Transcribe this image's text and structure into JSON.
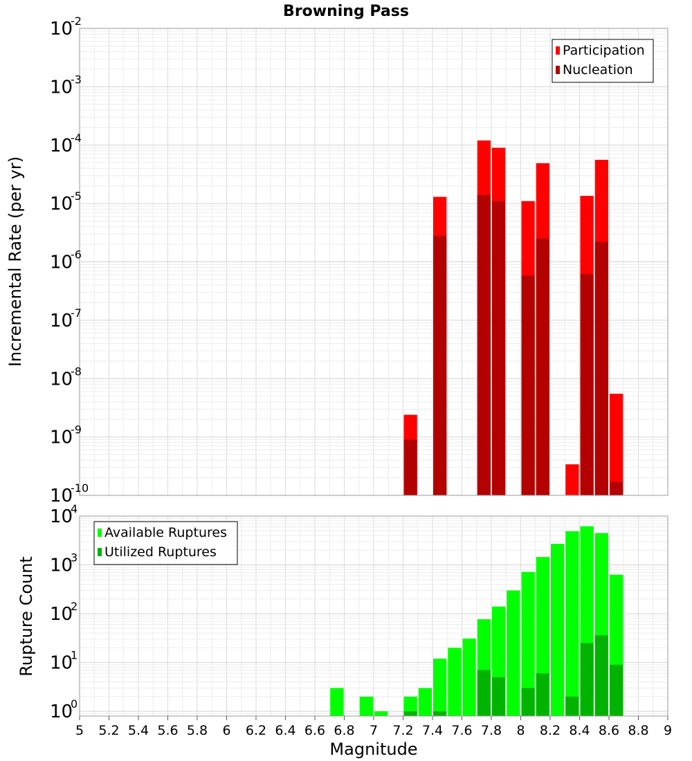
{
  "chart_data": [
    {
      "type": "bar",
      "title": "Browning Pass",
      "ylabel": "Incremental Rate (per yr)",
      "xlabel": "",
      "xlim": [
        5,
        9
      ],
      "ylim": [
        1e-10,
        0.01
      ],
      "yscale": "log",
      "grid": true,
      "legend_position": "top-right",
      "bin_width": 0.1,
      "series": [
        {
          "name": "Participation",
          "color": "#ff0000",
          "x": [
            7.25,
            7.45,
            7.75,
            7.85,
            8.05,
            8.15,
            8.35,
            8.45,
            8.55,
            8.65
          ],
          "values": [
            2.4e-09,
            1.3e-05,
            0.00012,
            9e-05,
            1.1e-05,
            4.9e-05,
            3.4e-10,
            1.35e-05,
            5.6e-05,
            5.5e-09
          ]
        },
        {
          "name": "Nucleation",
          "color": "#b30000",
          "x": [
            7.25,
            7.45,
            7.75,
            7.85,
            8.05,
            8.15,
            8.45,
            8.55,
            8.65
          ],
          "values": [
            9e-10,
            2.8e-06,
            1.4e-05,
            1.1e-05,
            5.8e-07,
            2.5e-06,
            6.2e-07,
            2.2e-06,
            1.7e-10
          ]
        }
      ]
    },
    {
      "type": "bar",
      "title": "",
      "ylabel": "Rupture Count",
      "xlabel": "Magnitude",
      "xlim": [
        5,
        9
      ],
      "ylim": [
        0.8,
        10000
      ],
      "yscale": "log",
      "grid": true,
      "legend_position": "top-left",
      "bin_width": 0.1,
      "x_ticks": [
        "5",
        "5.2",
        "5.4",
        "5.6",
        "5.8",
        "6",
        "6.2",
        "6.4",
        "6.6",
        "6.8",
        "7",
        "7.2",
        "7.4",
        "7.6",
        "7.8",
        "8",
        "8.2",
        "8.4",
        "8.6",
        "8.8",
        "9"
      ],
      "series": [
        {
          "name": "Available Ruptures",
          "color": "#00ff00",
          "x": [
            6.75,
            6.95,
            7.05,
            7.25,
            7.35,
            7.45,
            7.55,
            7.65,
            7.75,
            7.85,
            7.95,
            8.05,
            8.15,
            8.25,
            8.35,
            8.45,
            8.55,
            8.65
          ],
          "values": [
            3,
            2,
            1,
            2,
            3,
            12,
            20,
            31,
            77,
            140,
            300,
            720,
            1450,
            2700,
            4900,
            6200,
            4500,
            630
          ]
        },
        {
          "name": "Utilized Ruptures",
          "color": "#00b300",
          "x": [
            7.25,
            7.45,
            7.75,
            7.85,
            8.05,
            8.15,
            8.35,
            8.45,
            8.55,
            8.65
          ],
          "values": [
            1,
            1,
            7,
            5,
            3,
            6,
            2,
            25,
            36,
            9
          ]
        }
      ]
    }
  ]
}
